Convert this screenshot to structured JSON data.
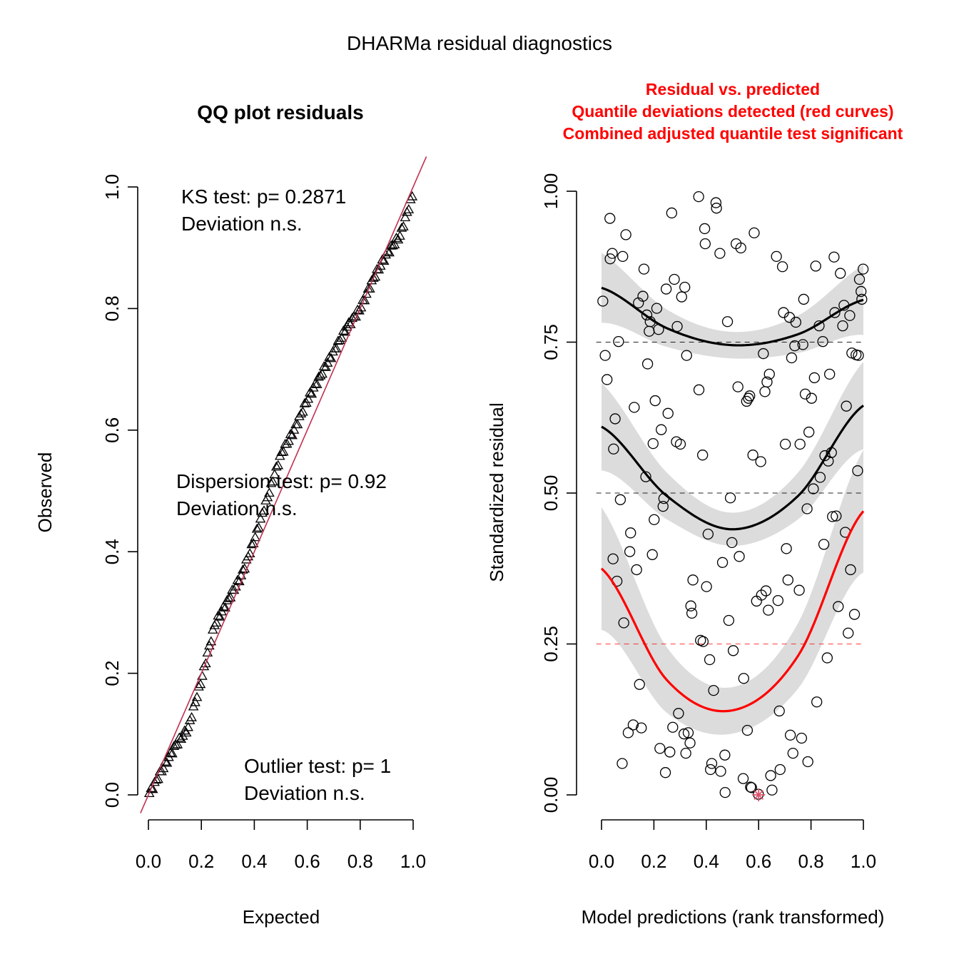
{
  "figure_title": "DHARMa residual diagnostics",
  "colors": {
    "red": "#ff0000",
    "qq_line": "#c2304f",
    "band": "#dcdcdc",
    "outlier": "#df536b"
  },
  "qq_panel": {
    "title": "QQ plot residuals",
    "annotations": [
      {
        "line1": "KS test: p= 0.2871",
        "line2": "Deviation  n.s."
      },
      {
        "line1": "Dispersion test: p= 0.92",
        "line2": "Deviation  n.s."
      },
      {
        "line1": "Outlier test: p= 1",
        "line2": "Deviation  n.s."
      }
    ]
  },
  "resid_panel": {
    "title_lines": [
      "Residual vs. predicted",
      "Quantile deviations detected (red curves)",
      "Combined adjusted quantile test significant"
    ]
  },
  "chart_data": [
    {
      "type": "scatter",
      "title": "QQ plot residuals",
      "xlabel": "Expected",
      "ylabel": "Observed",
      "xlim": [
        0,
        1
      ],
      "ylim": [
        0,
        1
      ],
      "xticks": [
        "0.0",
        "0.2",
        "0.4",
        "0.6",
        "0.8",
        "1.0"
      ],
      "yticks": [
        "0.0",
        "0.2",
        "0.4",
        "0.6",
        "0.8",
        "1.0"
      ],
      "marker": "triangle",
      "reference_line": {
        "slope": 1,
        "intercept": 0
      },
      "observed_curve": {
        "x": [
          0.0,
          0.05,
          0.1,
          0.15,
          0.2,
          0.25,
          0.3,
          0.35,
          0.4,
          0.45,
          0.5,
          0.55,
          0.6,
          0.65,
          0.7,
          0.75,
          0.8,
          0.85,
          0.9,
          0.95,
          1.0
        ],
        "y": [
          0.0,
          0.04,
          0.08,
          0.11,
          0.19,
          0.28,
          0.32,
          0.36,
          0.42,
          0.49,
          0.56,
          0.6,
          0.65,
          0.69,
          0.73,
          0.77,
          0.8,
          0.85,
          0.89,
          0.92,
          0.99
        ]
      },
      "n_points": 150
    },
    {
      "type": "scatter",
      "title": "Residual vs. predicted",
      "xlabel": "Model predictions (rank transformed)",
      "ylabel": "Standardized residual",
      "xlim": [
        0,
        1
      ],
      "ylim": [
        0,
        1
      ],
      "xticks": [
        "0.0",
        "0.2",
        "0.4",
        "0.6",
        "0.8",
        "1.0"
      ],
      "yticks": [
        "0.00",
        "0.25",
        "0.50",
        "0.75",
        "1.00"
      ],
      "reference_lines": [
        {
          "y": 0.25,
          "color": "red"
        },
        {
          "y": 0.5,
          "color": "black"
        },
        {
          "y": 0.75,
          "color": "black"
        }
      ],
      "quantile_curves": [
        {
          "quantile": 0.75,
          "color": "black",
          "x": [
            0.0,
            0.25,
            0.5,
            0.75,
            1.0
          ],
          "y": [
            0.84,
            0.773,
            0.745,
            0.763,
            0.82
          ],
          "band_halfwidth": 0.04
        },
        {
          "quantile": 0.5,
          "color": "black",
          "x": [
            0.0,
            0.25,
            0.5,
            0.75,
            1.0
          ],
          "y": [
            0.61,
            0.495,
            0.44,
            0.495,
            0.645
          ],
          "band_halfwidth": 0.05
        },
        {
          "quantile": 0.25,
          "color": "red",
          "x": [
            0.0,
            0.25,
            0.5,
            0.75,
            1.0
          ],
          "y": [
            0.375,
            0.19,
            0.14,
            0.23,
            0.47
          ],
          "band_halfwidth": 0.07
        }
      ],
      "points": [
        [
          0.005,
          0.818
        ],
        [
          0.014,
          0.728
        ],
        [
          0.021,
          0.688
        ],
        [
          0.032,
          0.955
        ],
        [
          0.033,
          0.888
        ],
        [
          0.041,
          0.897
        ],
        [
          0.044,
          0.391
        ],
        [
          0.046,
          0.573
        ],
        [
          0.052,
          0.623
        ],
        [
          0.059,
          0.354
        ],
        [
          0.065,
          0.751
        ],
        [
          0.072,
          0.489
        ],
        [
          0.079,
          0.052
        ],
        [
          0.081,
          0.892
        ],
        [
          0.085,
          0.285
        ],
        [
          0.093,
          0.928
        ],
        [
          0.102,
          0.103
        ],
        [
          0.108,
          0.403
        ],
        [
          0.111,
          0.434
        ],
        [
          0.121,
          0.116
        ],
        [
          0.125,
          0.642
        ],
        [
          0.134,
          0.373
        ],
        [
          0.141,
          0.815
        ],
        [
          0.145,
          0.183
        ],
        [
          0.152,
          0.111
        ],
        [
          0.158,
          0.826
        ],
        [
          0.162,
          0.871
        ],
        [
          0.169,
          0.527
        ],
        [
          0.173,
          0.795
        ],
        [
          0.176,
          0.714
        ],
        [
          0.182,
          0.768
        ],
        [
          0.186,
          0.784
        ],
        [
          0.194,
          0.398
        ],
        [
          0.197,
          0.582
        ],
        [
          0.201,
          0.456
        ],
        [
          0.205,
          0.653
        ],
        [
          0.211,
          0.806
        ],
        [
          0.218,
          0.771
        ],
        [
          0.223,
          0.077
        ],
        [
          0.228,
          0.605
        ],
        [
          0.235,
          0.478
        ],
        [
          0.238,
          0.491
        ],
        [
          0.244,
          0.037
        ],
        [
          0.247,
          0.838
        ],
        [
          0.254,
          0.632
        ],
        [
          0.261,
          0.071
        ],
        [
          0.268,
          0.964
        ],
        [
          0.272,
          0.112
        ],
        [
          0.278,
          0.854
        ],
        [
          0.286,
          0.585
        ],
        [
          0.289,
          0.776
        ],
        [
          0.294,
          0.135
        ],
        [
          0.301,
          0.581
        ],
        [
          0.306,
          0.825
        ],
        [
          0.315,
          0.101
        ],
        [
          0.318,
          0.841
        ],
        [
          0.322,
          0.069
        ],
        [
          0.325,
          0.728
        ],
        [
          0.331,
          0.103
        ],
        [
          0.338,
          0.086
        ],
        [
          0.341,
          0.313
        ],
        [
          0.345,
          0.301
        ],
        [
          0.349,
          0.356
        ],
        [
          0.371,
          0.991
        ],
        [
          0.372,
          0.671
        ],
        [
          0.378,
          0.256
        ],
        [
          0.386,
          0.563
        ],
        [
          0.388,
          0.254
        ],
        [
          0.394,
          0.938
        ],
        [
          0.396,
          0.913
        ],
        [
          0.401,
          0.345
        ],
        [
          0.407,
          0.432
        ],
        [
          0.413,
          0.224
        ],
        [
          0.416,
          0.042
        ],
        [
          0.421,
          0.052
        ],
        [
          0.428,
          0.173
        ],
        [
          0.437,
          0.981
        ],
        [
          0.439,
          0.972
        ],
        [
          0.452,
          0.897
        ],
        [
          0.455,
          0.039
        ],
        [
          0.462,
          0.385
        ],
        [
          0.471,
          0.066
        ],
        [
          0.472,
          0.004
        ],
        [
          0.481,
          0.784
        ],
        [
          0.486,
          0.289
        ],
        [
          0.492,
          0.492
        ],
        [
          0.498,
          0.418
        ],
        [
          0.503,
          0.239
        ],
        [
          0.514,
          0.913
        ],
        [
          0.521,
          0.676
        ],
        [
          0.526,
          0.395
        ],
        [
          0.532,
          0.906
        ],
        [
          0.541,
          0.027
        ],
        [
          0.543,
          0.193
        ],
        [
          0.554,
          0.652
        ],
        [
          0.557,
          0.107
        ],
        [
          0.561,
          0.657
        ],
        [
          0.566,
          0.661
        ],
        [
          0.569,
          0.013
        ],
        [
          0.573,
          0.012
        ],
        [
          0.578,
          0.563
        ],
        [
          0.583,
          0.931
        ],
        [
          0.592,
          0.321
        ],
        [
          0.599,
          0.001
        ],
        [
          0.608,
          0.552
        ],
        [
          0.611,
          0.331
        ],
        [
          0.618,
          0.731
        ],
        [
          0.624,
          0.668
        ],
        [
          0.628,
          0.338
        ],
        [
          0.632,
          0.684
        ],
        [
          0.637,
          0.306
        ],
        [
          0.641,
          0.697
        ],
        [
          0.646,
          0.032
        ],
        [
          0.651,
          0.008
        ],
        [
          0.668,
          0.892
        ],
        [
          0.674,
          0.322
        ],
        [
          0.679,
          0.139
        ],
        [
          0.682,
          0.042
        ],
        [
          0.691,
          0.875
        ],
        [
          0.695,
          0.799
        ],
        [
          0.702,
          0.581
        ],
        [
          0.706,
          0.408
        ],
        [
          0.712,
          0.356
        ],
        [
          0.718,
          0.791
        ],
        [
          0.721,
          0.099
        ],
        [
          0.726,
          0.724
        ],
        [
          0.731,
          0.069
        ],
        [
          0.738,
          0.744
        ],
        [
          0.742,
          0.783
        ],
        [
          0.755,
          0.339
        ],
        [
          0.758,
          0.581
        ],
        [
          0.764,
          0.094
        ],
        [
          0.769,
          0.746
        ],
        [
          0.772,
          0.821
        ],
        [
          0.778,
          0.664
        ],
        [
          0.785,
          0.474
        ],
        [
          0.788,
          0.055
        ],
        [
          0.792,
          0.601
        ],
        [
          0.802,
          0.657
        ],
        [
          0.809,
          0.507
        ],
        [
          0.813,
          0.691
        ],
        [
          0.818,
          0.876
        ],
        [
          0.822,
          0.154
        ],
        [
          0.831,
          0.777
        ],
        [
          0.835,
          0.526
        ],
        [
          0.845,
          0.751
        ],
        [
          0.849,
          0.415
        ],
        [
          0.853,
          0.562
        ],
        [
          0.862,
          0.227
        ],
        [
          0.866,
          0.553
        ],
        [
          0.871,
          0.697
        ],
        [
          0.878,
          0.567
        ],
        [
          0.882,
          0.461
        ],
        [
          0.888,
          0.891
        ],
        [
          0.891,
          0.799
        ],
        [
          0.896,
          0.462
        ],
        [
          0.904,
          0.312
        ],
        [
          0.912,
          0.864
        ],
        [
          0.921,
          0.777
        ],
        [
          0.926,
          0.811
        ],
        [
          0.931,
          0.435
        ],
        [
          0.935,
          0.644
        ],
        [
          0.942,
          0.268
        ],
        [
          0.948,
          0.794
        ],
        [
          0.951,
          0.373
        ],
        [
          0.956,
          0.732
        ],
        [
          0.966,
          0.299
        ],
        [
          0.972,
          0.729
        ],
        [
          0.978,
          0.537
        ],
        [
          0.981,
          0.728
        ],
        [
          0.985,
          0.854
        ],
        [
          0.991,
          0.834
        ],
        [
          0.994,
          0.821
        ],
        [
          0.999,
          0.871
        ]
      ],
      "outlier_points": [
        [
          0.6,
          0.0
        ]
      ]
    }
  ]
}
